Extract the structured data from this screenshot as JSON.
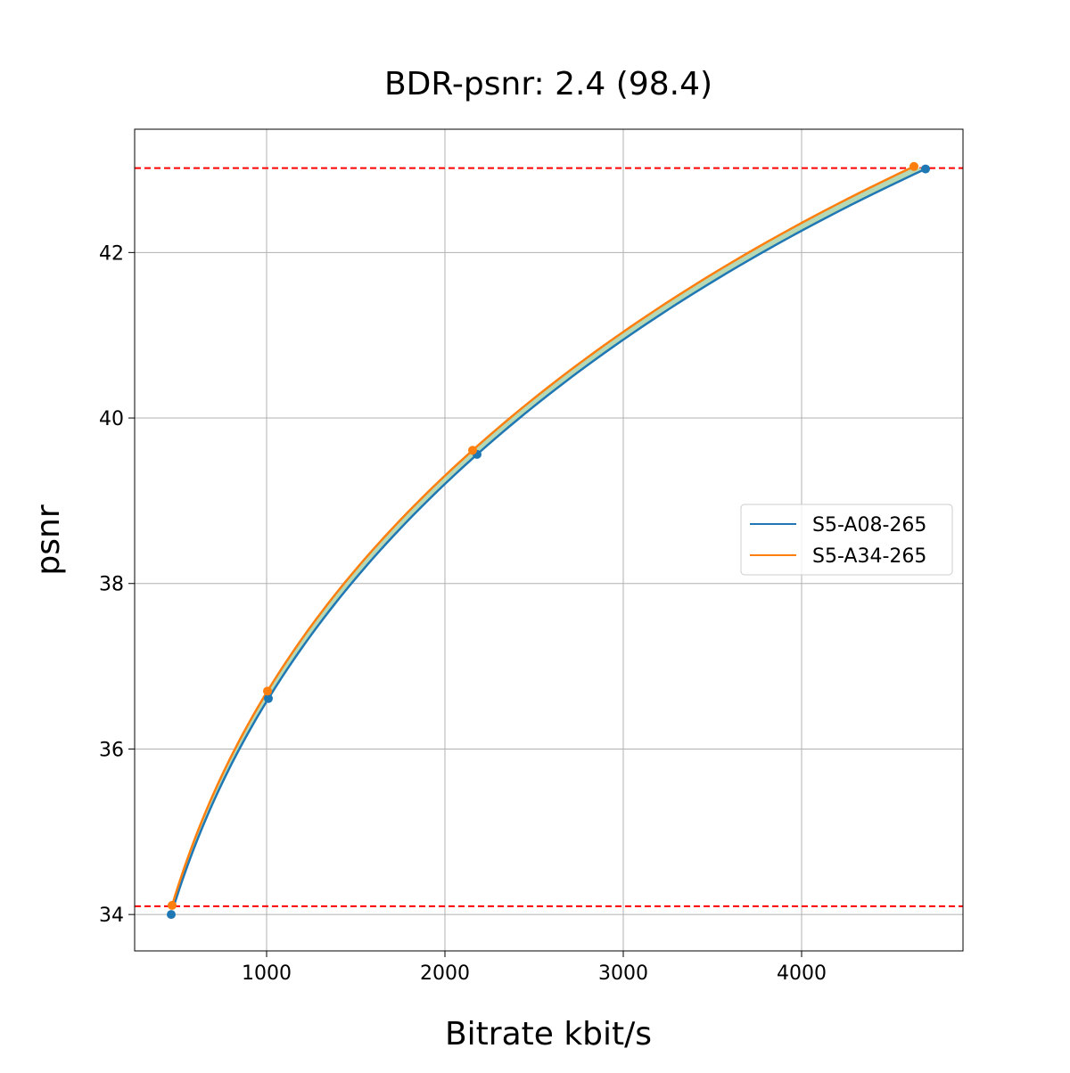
{
  "chart_data": {
    "type": "line",
    "title": "BDR-psnr: 2.4 (98.4)",
    "xlabel": "Bitrate kbit/s",
    "ylabel": "psnr",
    "xlim": [
      260,
      4905
    ],
    "ylim": [
      33.56,
      43.49
    ],
    "xticks": [
      1000,
      2000,
      3000,
      4000
    ],
    "yticks": [
      34,
      36,
      38,
      40,
      42
    ],
    "grid": true,
    "legend_position": "center-right",
    "series": [
      {
        "name": "S5-A08-265",
        "color": "#1f77b4",
        "x": [
          465,
          1010,
          2180,
          4695
        ],
        "y": [
          34.0,
          36.61,
          39.56,
          43.01
        ]
      },
      {
        "name": "S5-A34-265",
        "color": "#ff7f0e",
        "x": [
          470,
          1005,
          2155,
          4630
        ],
        "y": [
          34.11,
          36.7,
          39.61,
          43.04
        ]
      }
    ],
    "reference_lines": {
      "color": "#ff0000",
      "style": "dashed",
      "y": [
        34.1,
        43.02
      ]
    },
    "fill_between_color": "#b5d8b5"
  }
}
